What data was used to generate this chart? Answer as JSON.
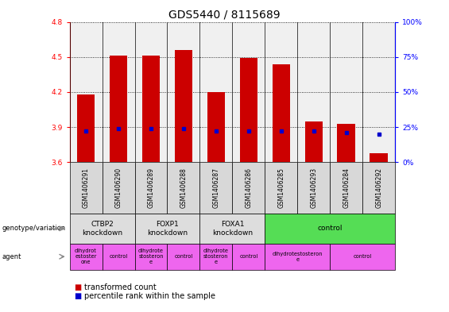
{
  "title": "GDS5440 / 8115689",
  "samples": [
    "GSM1406291",
    "GSM1406290",
    "GSM1406289",
    "GSM1406288",
    "GSM1406287",
    "GSM1406286",
    "GSM1406285",
    "GSM1406293",
    "GSM1406284",
    "GSM1406292"
  ],
  "transformed_count": [
    4.18,
    4.51,
    4.51,
    4.56,
    4.2,
    4.49,
    4.44,
    3.95,
    3.93,
    3.68
  ],
  "percentile_rank": [
    22,
    24,
    24,
    24,
    22,
    22,
    22,
    22,
    21,
    20
  ],
  "bar_bottom": 3.6,
  "ylim": [
    3.6,
    4.8
  ],
  "y2lim": [
    0,
    100
  ],
  "yticks": [
    3.6,
    3.9,
    4.2,
    4.5,
    4.8
  ],
  "y2ticks": [
    0,
    25,
    50,
    75,
    100
  ],
  "bar_color": "#cc0000",
  "dot_color": "#0000cc",
  "plot_bg": "#f0f0f0",
  "genotype_groups": [
    {
      "label": "CTBP2\nknockdown",
      "start": 0,
      "end": 2,
      "color": "#dddddd"
    },
    {
      "label": "FOXP1\nknockdown",
      "start": 2,
      "end": 4,
      "color": "#dddddd"
    },
    {
      "label": "FOXA1\nknockdown",
      "start": 4,
      "end": 6,
      "color": "#dddddd"
    },
    {
      "label": "control",
      "start": 6,
      "end": 10,
      "color": "#55dd55"
    }
  ],
  "agent_groups": [
    {
      "label": "dihydrot\nestoster\none",
      "start": 0,
      "end": 1,
      "color": "#ee66ee"
    },
    {
      "label": "control",
      "start": 1,
      "end": 2,
      "color": "#ee66ee"
    },
    {
      "label": "dihydrote\nstosteron\ne",
      "start": 2,
      "end": 3,
      "color": "#ee66ee"
    },
    {
      "label": "control",
      "start": 3,
      "end": 4,
      "color": "#ee66ee"
    },
    {
      "label": "dihydrote\nstosteron\ne",
      "start": 4,
      "end": 5,
      "color": "#ee66ee"
    },
    {
      "label": "control",
      "start": 5,
      "end": 6,
      "color": "#ee66ee"
    },
    {
      "label": "dihydrotestosteron\ne",
      "start": 6,
      "end": 8,
      "color": "#ee66ee"
    },
    {
      "label": "control",
      "start": 8,
      "end": 10,
      "color": "#ee66ee"
    }
  ],
  "title_fontsize": 10,
  "tick_fontsize": 6.5,
  "label_fontsize": 7
}
